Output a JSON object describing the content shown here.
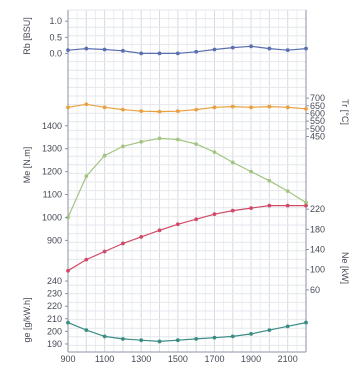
{
  "chart_data": {
    "type": "line",
    "x": [
      900,
      1000,
      1100,
      1200,
      1300,
      1400,
      1500,
      1600,
      1700,
      1800,
      1900,
      2000,
      2100,
      2200
    ],
    "x_ticks": [
      "900",
      "1100",
      "1300",
      "1500",
      "1700",
      "1900",
      "2100"
    ],
    "xlim": [
      900,
      2200
    ],
    "grid": true,
    "series": [
      {
        "key": "rb",
        "ylabel": "Rb [BSU]",
        "axis": "left",
        "ylim": [
          -0.05,
          1.1
        ],
        "ticks": [
          "1.0",
          "0.5",
          "0.0"
        ],
        "color": "#5a6fb0",
        "values": [
          0.1,
          0.15,
          0.12,
          0.08,
          0.0,
          0.0,
          0.0,
          0.05,
          0.12,
          0.18,
          0.22,
          0.15,
          0.1,
          0.15
        ]
      },
      {
        "key": "tc",
        "ylabel": "Tr [°C]",
        "axis": "right",
        "ylim": [
          440,
          740
        ],
        "ticks": [
          "700",
          "650",
          "600",
          "550",
          "500",
          "450"
        ],
        "color": "#e8a040",
        "values": [
          640,
          660,
          640,
          625,
          615,
          612,
          615,
          625,
          640,
          645,
          640,
          645,
          640,
          630
        ]
      },
      {
        "key": "me",
        "ylabel": "Me [N.m]",
        "axis": "left",
        "ylim": [
          880,
          1460
        ],
        "ticks": [
          "1400",
          "1300",
          "1200",
          "1100",
          "1000",
          "900"
        ],
        "color": "#a4c482",
        "values": [
          1000,
          1180,
          1270,
          1310,
          1330,
          1345,
          1340,
          1320,
          1285,
          1240,
          1200,
          1160,
          1115,
          1065
        ]
      },
      {
        "key": "ne",
        "ylabel": "Ne [kW]",
        "axis": "right",
        "ylim": [
          40,
          248
        ],
        "ticks": [
          "220",
          "180",
          "140",
          "100",
          "60"
        ],
        "color": "#d04a68",
        "values": [
          98,
          120,
          136,
          152,
          165,
          178,
          190,
          200,
          210,
          217,
          222,
          227,
          227,
          227
        ]
      },
      {
        "key": "ge",
        "ylabel": "ge [g/kW.h]",
        "axis": "left",
        "ylim": [
          186,
          244
        ],
        "ticks": [
          "240",
          "230",
          "220",
          "210",
          "200",
          "190"
        ],
        "color": "#3a8c84",
        "values": [
          207,
          201,
          196,
          194,
          193,
          192,
          193,
          194,
          195,
          196,
          198,
          201,
          204,
          207
        ]
      }
    ]
  }
}
